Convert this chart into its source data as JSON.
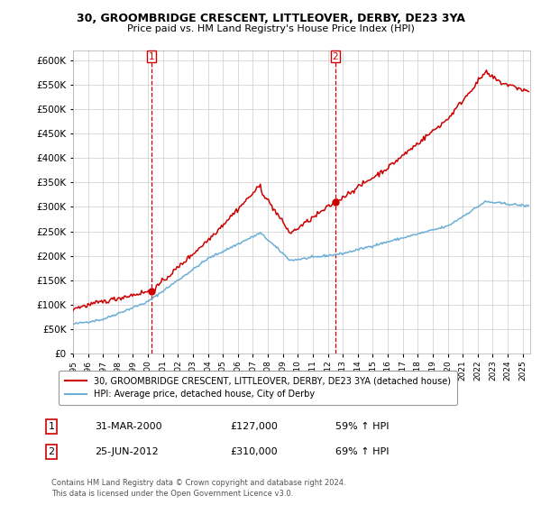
{
  "title": "30, GROOMBRIDGE CRESCENT, LITTLEOVER, DERBY, DE23 3YA",
  "subtitle": "Price paid vs. HM Land Registry's House Price Index (HPI)",
  "legend_line1": "30, GROOMBRIDGE CRESCENT, LITTLEOVER, DERBY, DE23 3YA (detached house)",
  "legend_line2": "HPI: Average price, detached house, City of Derby",
  "sale1_label": "1",
  "sale1_date": "31-MAR-2000",
  "sale1_price": "£127,000",
  "sale1_hpi": "59% ↑ HPI",
  "sale2_label": "2",
  "sale2_date": "25-JUN-2012",
  "sale2_price": "£310,000",
  "sale2_hpi": "69% ↑ HPI",
  "footnote1": "Contains HM Land Registry data © Crown copyright and database right 2024.",
  "footnote2": "This data is licensed under the Open Government Licence v3.0.",
  "hpi_color": "#6baed6",
  "price_color": "#cc0000",
  "vline_color": "#cc0000",
  "bg_color": "#ffffff",
  "grid_color": "#cccccc",
  "ylim": [
    0,
    620000
  ],
  "yticks": [
    0,
    50000,
    100000,
    150000,
    200000,
    250000,
    300000,
    350000,
    400000,
    450000,
    500000,
    550000,
    600000
  ],
  "sale1_year": 2000.25,
  "sale2_year": 2012.5,
  "xmin": 1995,
  "xmax": 2025.5
}
